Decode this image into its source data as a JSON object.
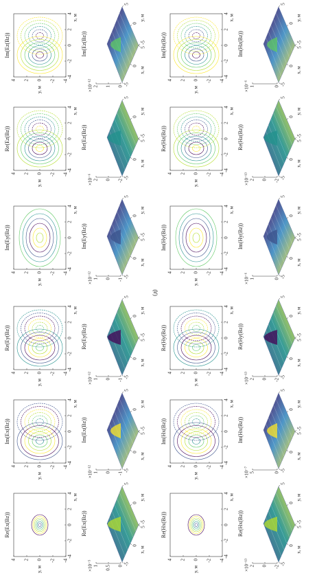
{
  "figure_label": "(д)",
  "contour_plots": [
    {
      "title": "Re(Ex(Bz))",
      "xlabel": "x, м",
      "ylabel": "y, м",
      "xticks": [
        -4,
        -2,
        0,
        2,
        4
      ],
      "yticks": [
        -4,
        -2,
        0,
        2,
        4
      ]
    },
    {
      "title": "Im(Ex(Bz))",
      "xlabel": "x, м",
      "ylabel": "y, м",
      "xticks": [
        -4,
        -2,
        0,
        2,
        4
      ],
      "yticks": [
        -4,
        -2,
        0,
        2,
        4
      ]
    },
    {
      "title": "Re(Ey(Bz))",
      "xlabel": "x, м",
      "ylabel": "y, м",
      "xticks": [
        -4,
        -2,
        0,
        2,
        4
      ],
      "yticks": [
        -4,
        -2,
        0,
        2,
        4
      ]
    },
    {
      "title": "Im(Ey(Bz))",
      "xlabel": "x, м",
      "ylabel": "y, м",
      "xticks": [
        -4,
        -2,
        0,
        2,
        4
      ],
      "yticks": [
        -4,
        -2,
        0,
        2,
        4
      ]
    },
    {
      "title": "Re(Ez(Bz))",
      "xlabel": "x, м",
      "ylabel": "y, м",
      "xticks": [
        -4,
        -2,
        0,
        2,
        4
      ],
      "yticks": [
        -4,
        -2,
        0,
        2,
        4
      ]
    },
    {
      "title": "Im(Ez(Bz))",
      "xlabel": "x, м",
      "ylabel": "y, м",
      "xticks": [
        -4,
        -2,
        0,
        2,
        4
      ],
      "yticks": [
        -4,
        -2,
        0,
        2,
        4
      ]
    },
    {
      "title": "Re(Hx(Bz))",
      "xlabel": "x, м",
      "ylabel": "y, м",
      "xticks": [
        -4,
        -2,
        0,
        2,
        4
      ],
      "yticks": [
        -4,
        -2,
        0,
        2,
        4
      ]
    },
    {
      "title": "Im(Hx(Bz))",
      "xlabel": "x, м",
      "ylabel": "y, м",
      "xticks": [
        -4,
        -2,
        0,
        2,
        4
      ],
      "yticks": [
        -4,
        -2,
        0,
        2,
        4
      ]
    },
    {
      "title": "Re(Hy(Bz))",
      "xlabel": "x, м",
      "ylabel": "y, м",
      "xticks": [
        -4,
        -2,
        0,
        2,
        4
      ],
      "yticks": [
        -4,
        -2,
        0,
        2,
        4
      ]
    },
    {
      "title": "Im(Hy(Bz))",
      "xlabel": "x, м",
      "ylabel": "y, м",
      "xticks": [
        -4,
        -2,
        0,
        2,
        4
      ],
      "yticks": [
        -4,
        -2,
        0,
        2,
        4
      ]
    },
    {
      "title": "Re(Hz(Bz))",
      "xlabel": "x, м",
      "ylabel": "y, м",
      "xticks": [
        -4,
        -2,
        0,
        2,
        4
      ],
      "yticks": [
        -4,
        -2,
        0,
        2,
        4
      ]
    },
    {
      "title": "Im(Hz(Bz))",
      "xlabel": "x, м",
      "ylabel": "y, м",
      "xticks": [
        -4,
        -2,
        0,
        2,
        4
      ],
      "yticks": [
        -4,
        -2,
        0,
        2,
        4
      ]
    }
  ],
  "surface_plots": [
    {
      "title": "Re(Ex(Bz))",
      "scale": "×10⁻⁵",
      "zticks": [
        0,
        0.5,
        1
      ],
      "xlabel": "x, м",
      "ylabel": "y, м",
      "xticks": [
        -5,
        0,
        5
      ],
      "yticks": [
        -5,
        0,
        5
      ]
    },
    {
      "title": "Im(Ex(Bz))",
      "scale": "×10⁻¹²",
      "zticks": [
        -1,
        0,
        1
      ],
      "xlabel": "x, м",
      "ylabel": "y, м",
      "xticks": [
        -5,
        0,
        5
      ],
      "yticks": [
        -5,
        0,
        5
      ]
    },
    {
      "title": "Re(Ey(Bz))",
      "scale": "×10⁻¹²",
      "zticks": [
        -1,
        0,
        1
      ],
      "xlabel": "x, м",
      "ylabel": "y, м",
      "xticks": [
        -5,
        0,
        5
      ],
      "yticks": [
        -5,
        0,
        5
      ]
    },
    {
      "title": "Im(Ey(Bz))",
      "scale": "×10⁻¹²",
      "zticks": [
        -1,
        0,
        1
      ],
      "xlabel": "x, м",
      "ylabel": "y, м",
      "xticks": [
        -5,
        0,
        5
      ],
      "yticks": [
        -5,
        0,
        5
      ]
    },
    {
      "title": "Re(Ez(Bz))",
      "scale": "×10⁻⁶",
      "zticks": [
        -2,
        0,
        2
      ],
      "xlabel": "x, м",
      "ylabel": "y, м",
      "xticks": [
        -5,
        0,
        5
      ],
      "yticks": [
        -5,
        0,
        5
      ]
    },
    {
      "title": "Im(Ez(Bz))",
      "scale": "×10⁻¹²",
      "zticks": [
        0,
        1,
        2
      ],
      "xlabel": "x, м",
      "ylabel": "y, м",
      "xticks": [
        -5,
        0,
        5
      ],
      "yticks": [
        -5,
        0,
        5
      ]
    },
    {
      "title": "Re(Hx(Bz))",
      "scale": "×10⁻¹³",
      "zticks": [
        -2,
        0,
        2
      ],
      "xlabel": "x, м",
      "ylabel": "y, м",
      "xticks": [
        -5,
        0,
        5
      ],
      "yticks": [
        -5,
        0,
        5
      ]
    },
    {
      "title": "Im(Hx(Bz))",
      "scale": "×10⁻⁷",
      "zticks": [
        0,
        5
      ],
      "xlabel": "x, м",
      "ylabel": "y, м",
      "xticks": [
        -5,
        0,
        5
      ],
      "yticks": [
        -5,
        0,
        5
      ]
    },
    {
      "title": "Re(Hy(Bz))",
      "scale": "×10⁻¹³",
      "zticks": [
        -2,
        0,
        2
      ],
      "xlabel": "x, м",
      "ylabel": "y, м",
      "xticks": [
        -5,
        0,
        5
      ],
      "yticks": [
        -5,
        0,
        5
      ]
    },
    {
      "title": "Im(Hy(Bz))",
      "scale": "×10⁻⁶",
      "zticks": [
        0,
        1
      ],
      "xlabel": "x, м",
      "ylabel": "y, м",
      "xticks": [
        -5,
        0,
        5
      ],
      "yticks": [
        -5,
        0,
        5
      ]
    },
    {
      "title": "Re(Hz(Bz))",
      "scale": "×10⁻¹³",
      "zticks": [
        -2,
        0,
        2
      ],
      "xlabel": "x, м",
      "ylabel": "y, м",
      "xticks": [
        -5,
        0,
        5
      ],
      "yticks": [
        -5,
        0,
        5
      ]
    },
    {
      "title": "Im(Hz(Bz))",
      "scale": "×10⁻⁶",
      "zticks": [
        0,
        1
      ],
      "xlabel": "x, м",
      "ylabel": "y, м",
      "xticks": [
        -5,
        0,
        5
      ],
      "yticks": [
        -5,
        0,
        5
      ]
    }
  ]
}
